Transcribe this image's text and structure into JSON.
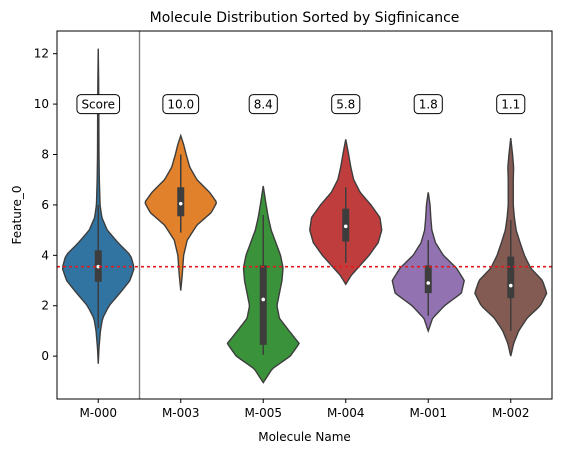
{
  "chart_data": {
    "type": "violin",
    "title": "Molecule Distribution Sorted by Sigfinicance",
    "xlabel": "Molecule Name",
    "ylabel": "Feature_0",
    "ylim": [
      -1.7,
      12.9
    ],
    "yticks": [
      0,
      2,
      4,
      6,
      8,
      10,
      12
    ],
    "reference_line": {
      "y": 3.55,
      "color": "#e31a1c",
      "style": "dotted"
    },
    "separator_after_index": 0,
    "series": [
      {
        "name": "M-000",
        "score": "Score",
        "color": "#3274a1",
        "median": 3.55,
        "q1": 2.95,
        "q3": 4.2,
        "whisker_low": 1.1,
        "whisker_high": 6.0,
        "profile": [
          [
            -0.3,
            0
          ],
          [
            0.3,
            0.02
          ],
          [
            1.0,
            0.06
          ],
          [
            1.5,
            0.12
          ],
          [
            2.0,
            0.3
          ],
          [
            2.5,
            0.6
          ],
          [
            3.0,
            0.88
          ],
          [
            3.5,
            1.0
          ],
          [
            4.0,
            0.9
          ],
          [
            4.5,
            0.55
          ],
          [
            5.0,
            0.25
          ],
          [
            5.5,
            0.1
          ],
          [
            6.0,
            0.05
          ],
          [
            7.0,
            0.03
          ],
          [
            8.0,
            0.02
          ],
          [
            10.0,
            0.015
          ],
          [
            11.0,
            0.01
          ],
          [
            12.2,
            0
          ]
        ]
      },
      {
        "name": "M-003",
        "score": "10.0",
        "color": "#e1812c",
        "median": 6.05,
        "q1": 5.55,
        "q3": 6.7,
        "whisker_low": 4.9,
        "whisker_high": 8.0,
        "profile": [
          [
            2.6,
            0
          ],
          [
            3.2,
            0.04
          ],
          [
            4.0,
            0.08
          ],
          [
            4.6,
            0.18
          ],
          [
            5.2,
            0.45
          ],
          [
            5.7,
            0.85
          ],
          [
            6.1,
            1.0
          ],
          [
            6.5,
            0.8
          ],
          [
            7.0,
            0.45
          ],
          [
            7.5,
            0.25
          ],
          [
            8.0,
            0.15
          ],
          [
            8.4,
            0.08
          ],
          [
            8.75,
            0
          ]
        ]
      },
      {
        "name": "M-005",
        "score": "8.4",
        "color": "#3a923a",
        "median": 2.25,
        "q1": 0.45,
        "q3": 3.6,
        "whisker_low": 0.05,
        "whisker_high": 5.6,
        "profile": [
          [
            -1.05,
            0
          ],
          [
            -0.5,
            0.25
          ],
          [
            0.0,
            0.75
          ],
          [
            0.5,
            1.0
          ],
          [
            1.0,
            0.72
          ],
          [
            1.5,
            0.45
          ],
          [
            2.0,
            0.38
          ],
          [
            2.5,
            0.45
          ],
          [
            3.0,
            0.52
          ],
          [
            3.5,
            0.55
          ],
          [
            4.0,
            0.48
          ],
          [
            4.5,
            0.35
          ],
          [
            5.0,
            0.22
          ],
          [
            5.5,
            0.14
          ],
          [
            6.0,
            0.08
          ],
          [
            6.75,
            0
          ]
        ]
      },
      {
        "name": "M-004",
        "score": "5.8",
        "color": "#c03d3e",
        "median": 5.15,
        "q1": 4.55,
        "q3": 5.85,
        "whisker_low": 3.7,
        "whisker_high": 6.7,
        "profile": [
          [
            2.85,
            0
          ],
          [
            3.2,
            0.15
          ],
          [
            3.6,
            0.4
          ],
          [
            4.0,
            0.65
          ],
          [
            4.5,
            0.9
          ],
          [
            5.0,
            1.0
          ],
          [
            5.5,
            0.95
          ],
          [
            6.0,
            0.7
          ],
          [
            6.5,
            0.4
          ],
          [
            7.0,
            0.22
          ],
          [
            7.5,
            0.14
          ],
          [
            8.0,
            0.08
          ],
          [
            8.6,
            0
          ]
        ]
      },
      {
        "name": "M-001",
        "score": "1.8",
        "color": "#9372b2",
        "median": 2.9,
        "q1": 2.5,
        "q3": 3.6,
        "whisker_low": 1.6,
        "whisker_high": 4.6,
        "profile": [
          [
            1.0,
            0
          ],
          [
            1.5,
            0.12
          ],
          [
            2.0,
            0.45
          ],
          [
            2.5,
            0.92
          ],
          [
            3.0,
            1.0
          ],
          [
            3.5,
            0.78
          ],
          [
            4.0,
            0.42
          ],
          [
            4.5,
            0.2
          ],
          [
            5.0,
            0.1
          ],
          [
            5.5,
            0.07
          ],
          [
            6.0,
            0.05
          ],
          [
            6.5,
            0
          ]
        ]
      },
      {
        "name": "M-002",
        "score": "1.1",
        "color": "#845b53",
        "median": 2.8,
        "q1": 2.3,
        "q3": 3.95,
        "whisker_low": 1.0,
        "whisker_high": 5.4,
        "profile": [
          [
            0.0,
            0
          ],
          [
            0.5,
            0.08
          ],
          [
            1.0,
            0.22
          ],
          [
            1.5,
            0.45
          ],
          [
            2.0,
            0.82
          ],
          [
            2.5,
            1.0
          ],
          [
            3.0,
            0.88
          ],
          [
            3.5,
            0.55
          ],
          [
            4.0,
            0.38
          ],
          [
            4.5,
            0.26
          ],
          [
            5.0,
            0.15
          ],
          [
            5.5,
            0.1
          ],
          [
            6.0,
            0.07
          ],
          [
            7.0,
            0.07
          ],
          [
            7.5,
            0.08
          ],
          [
            8.0,
            0.05
          ],
          [
            8.65,
            0
          ]
        ]
      }
    ]
  }
}
